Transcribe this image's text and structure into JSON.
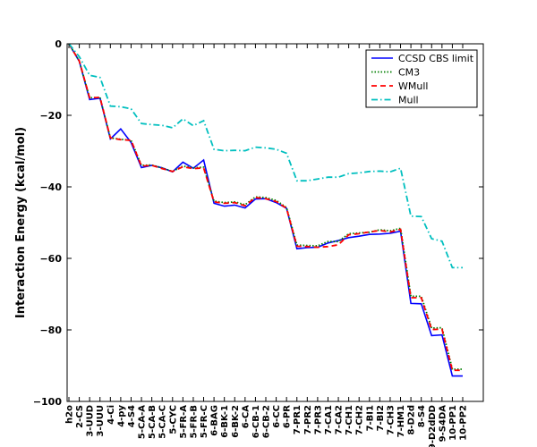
{
  "chart_data": {
    "type": "line",
    "title": "",
    "xlabel": "",
    "ylabel": "Interaction Energy (kcal/mol)",
    "ylim": [
      -100,
      0
    ],
    "yticks": [
      0,
      -20,
      -40,
      -60,
      -80,
      -100
    ],
    "ytick_labels": [
      "0",
      "−20",
      "−40",
      "−60",
      "−80",
      "−100"
    ],
    "grid": false,
    "legend_position": "top-right",
    "categories": [
      "h2o",
      "2-CS",
      "3-UUD",
      "3-UUU",
      "4-Ci",
      "4-py",
      "4-S4",
      "5-CA-A",
      "5-CA-B",
      "5-CA-C",
      "5-CYC",
      "5-FR-A",
      "5-FR-B",
      "5-FR-C",
      "6-BAG",
      "6-BK-1",
      "6-BK-2",
      "6-CA",
      "6-CB-1",
      "6-CB-2",
      "6-CC",
      "6-PR",
      "7-PR1",
      "7-PR2",
      "7-PR3",
      "7-CA1",
      "7-CA2",
      "7-CH1",
      "7-CH2",
      "7-BI1",
      "7-BI2",
      "7-CH3",
      "7-HM1",
      "8-D2d",
      "8-S4",
      "9-D2dDD",
      "9-S4DA",
      "10-PP1",
      "10-PP2"
    ],
    "series": [
      {
        "name": "CCSD CBS limit",
        "color": "#0000ff",
        "style": "solid",
        "values": [
          0.0,
          -4.9,
          -15.6,
          -15.2,
          -26.6,
          -23.8,
          -27.6,
          -34.6,
          -34.0,
          -34.7,
          -35.8,
          -33.1,
          -34.8,
          -32.5,
          -44.6,
          -45.4,
          -45.1,
          -45.9,
          -43.4,
          -43.3,
          -44.4,
          -46.0,
          -57.3,
          -57.0,
          -56.9,
          -55.7,
          -55.0,
          -54.2,
          -53.8,
          -53.3,
          -53.2,
          -53.0,
          -52.4,
          -72.6,
          -72.7,
          -81.6,
          -81.4,
          -92.9,
          -92.9
        ]
      },
      {
        "name": "CM3",
        "color": "#007f00",
        "style": "dotted",
        "values": [
          0.0,
          -4.8,
          -15.1,
          -15.0,
          -26.3,
          -26.7,
          -27.0,
          -34.0,
          -33.9,
          -34.7,
          -35.7,
          -34.2,
          -34.7,
          -34.5,
          -44.0,
          -44.4,
          -44.2,
          -45.0,
          -42.8,
          -43.0,
          -43.8,
          -45.8,
          -56.3,
          -56.4,
          -56.5,
          -55.3,
          -55.3,
          -53.1,
          -52.9,
          -52.7,
          -52.0,
          -52.3,
          -51.6,
          -70.6,
          -70.6,
          -79.5,
          -79.4,
          -91.0,
          -91.0
        ]
      },
      {
        "name": "WMull",
        "color": "#ff0000",
        "style": "dashed",
        "values": [
          0.0,
          -4.8,
          -15.1,
          -15.0,
          -26.3,
          -26.8,
          -27.0,
          -34.2,
          -34.0,
          -34.9,
          -35.7,
          -34.4,
          -34.9,
          -34.7,
          -44.2,
          -44.6,
          -44.4,
          -45.3,
          -43.0,
          -43.3,
          -44.1,
          -46.0,
          -56.6,
          -56.7,
          -56.9,
          -56.7,
          -56.2,
          -53.4,
          -53.1,
          -52.6,
          -52.2,
          -52.6,
          -51.9,
          -71.0,
          -71.0,
          -79.9,
          -79.8,
          -91.3,
          -91.3
        ]
      },
      {
        "name": "Mull",
        "color": "#00bfbf",
        "style": "dashdot",
        "values": [
          0.0,
          -3.6,
          -8.8,
          -9.4,
          -17.4,
          -17.6,
          -18.2,
          -22.3,
          -22.6,
          -22.8,
          -23.5,
          -21.0,
          -22.9,
          -21.5,
          -29.5,
          -29.9,
          -29.8,
          -29.9,
          -28.9,
          -29.1,
          -29.5,
          -30.6,
          -38.3,
          -38.3,
          -37.8,
          -37.3,
          -37.3,
          -36.3,
          -36.1,
          -35.7,
          -35.6,
          -35.8,
          -34.8,
          -48.2,
          -48.3,
          -54.5,
          -55.2,
          -62.6,
          -62.6
        ]
      }
    ]
  }
}
